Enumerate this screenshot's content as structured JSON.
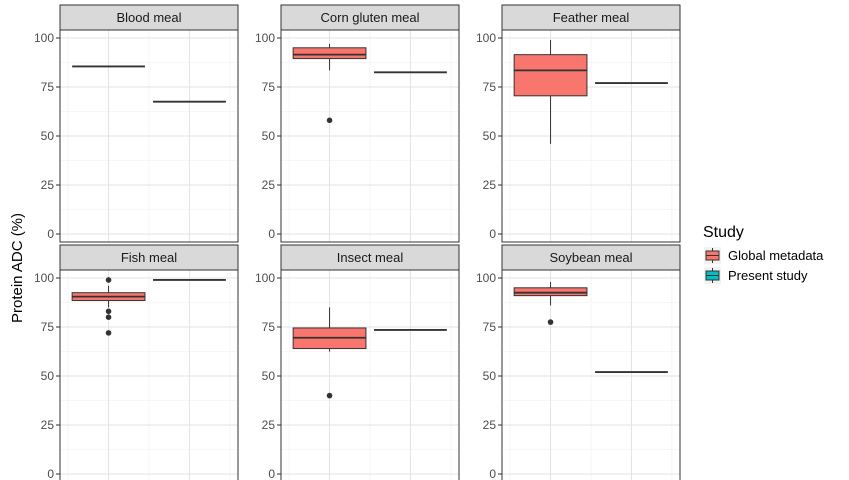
{
  "chart_data": {
    "type": "box",
    "ylabel": "Protein ADC (%)",
    "ylim": [
      0,
      100
    ],
    "yticks": [
      0,
      25,
      50,
      75,
      100
    ],
    "grid": true,
    "legend": {
      "title": "Study",
      "placement": "right",
      "entries": [
        {
          "name": "Global metadata",
          "color": "#F8766D"
        },
        {
          "name": "Present study",
          "color": "#00BFC4"
        }
      ]
    },
    "series": [
      "Global metadata",
      "Present study"
    ],
    "panels": [
      {
        "title": "Blood meal",
        "boxes": [
          {
            "series": "Global metadata",
            "median": 85.5,
            "q1": 85.5,
            "q3": 85.5,
            "whisker_low": 85.5,
            "whisker_high": 85.5,
            "outliers": []
          },
          {
            "series": "Present study",
            "median": 67.5,
            "q1": 67.5,
            "q3": 67.5,
            "whisker_low": 67.5,
            "whisker_high": 67.5,
            "outliers": []
          }
        ]
      },
      {
        "title": "Corn gluten meal",
        "boxes": [
          {
            "series": "Global metadata",
            "median": 91.5,
            "q1": 89.5,
            "q3": 95,
            "whisker_low": 83.5,
            "whisker_high": 97,
            "outliers": [
              58
            ]
          },
          {
            "series": "Present study",
            "median": 82.5,
            "q1": 82.5,
            "q3": 82.5,
            "whisker_low": 82.5,
            "whisker_high": 82.5,
            "outliers": []
          }
        ]
      },
      {
        "title": "Feather meal",
        "boxes": [
          {
            "series": "Global metadata",
            "median": 83.5,
            "q1": 70.5,
            "q3": 91.5,
            "whisker_low": 46,
            "whisker_high": 99,
            "outliers": []
          },
          {
            "series": "Present study",
            "median": 77,
            "q1": 77,
            "q3": 77,
            "whisker_low": 77,
            "whisker_high": 77,
            "outliers": []
          }
        ]
      },
      {
        "title": "Fish meal",
        "boxes": [
          {
            "series": "Global metadata",
            "median": 90.5,
            "q1": 88.5,
            "q3": 92.5,
            "whisker_low": 85,
            "whisker_high": 96,
            "outliers": [
              99,
              83,
              80,
              72
            ]
          },
          {
            "series": "Present study",
            "median": 99,
            "q1": 99,
            "q3": 99,
            "whisker_low": 99,
            "whisker_high": 99,
            "outliers": []
          }
        ]
      },
      {
        "title": "Insect meal",
        "boxes": [
          {
            "series": "Global metadata",
            "median": 69.5,
            "q1": 64,
            "q3": 74.5,
            "whisker_low": 62.5,
            "whisker_high": 85,
            "outliers": [
              40
            ]
          },
          {
            "series": "Present study",
            "median": 73.5,
            "q1": 73.5,
            "q3": 73.5,
            "whisker_low": 73.5,
            "whisker_high": 73.5,
            "outliers": []
          }
        ]
      },
      {
        "title": "Soybean meal",
        "boxes": [
          {
            "series": "Global metadata",
            "median": 92.5,
            "q1": 91,
            "q3": 95,
            "whisker_low": 86,
            "whisker_high": 98,
            "outliers": [
              77.5
            ]
          },
          {
            "series": "Present study",
            "median": 52,
            "q1": 52,
            "q3": 52,
            "whisker_low": 52,
            "whisker_high": 52,
            "outliers": []
          }
        ]
      }
    ]
  }
}
